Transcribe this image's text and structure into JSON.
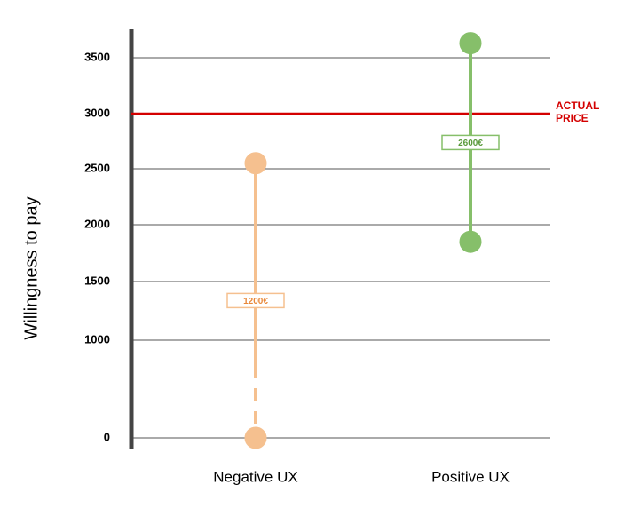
{
  "chart_data": {
    "type": "range",
    "y_label": "Willingness to pay",
    "categories": [
      "Negative UX",
      "Positive UX"
    ],
    "low": [
      0,
      1850
    ],
    "high": [
      2550,
      3630
    ],
    "range_labels": [
      "1200€",
      "2600€"
    ],
    "colors": [
      "#f5c08f",
      "#86bf6a"
    ],
    "label_colors": [
      "#e8883a",
      "#5a9a3c"
    ],
    "yticks": [
      0,
      1000,
      1500,
      2000,
      2500,
      3000,
      3500
    ],
    "ylim": [
      0,
      3630
    ],
    "grid": true,
    "reference_line": {
      "value": 3000,
      "label": "ACTUAL PRICE",
      "color": "#d40000"
    }
  }
}
